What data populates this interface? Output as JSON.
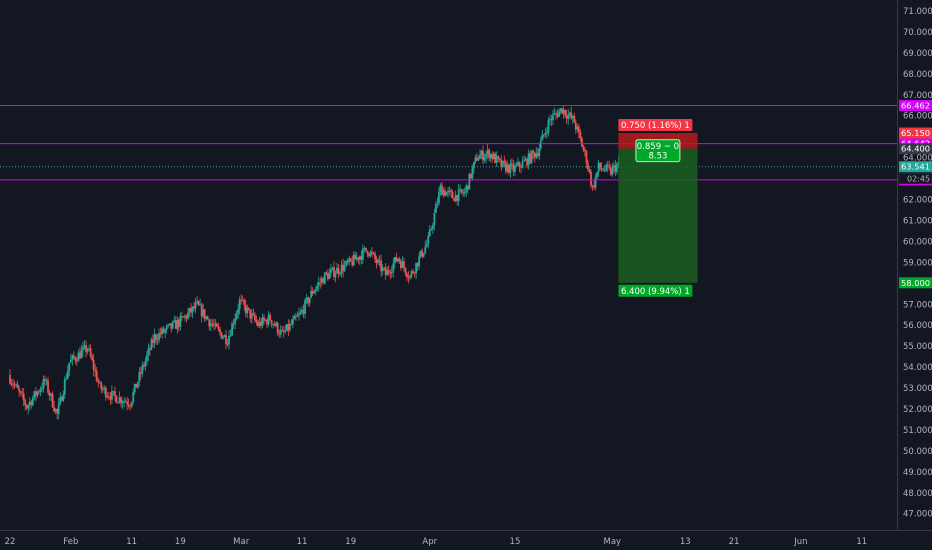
{
  "chart_data": {
    "type": "candlestick",
    "title": "",
    "xlabel": "",
    "ylabel": "",
    "ylim": [
      46.2,
      71.5
    ],
    "grid": false,
    "y_ticks": [
      47,
      48,
      49,
      50,
      51,
      52,
      53,
      54,
      55,
      56,
      57,
      58,
      59,
      60,
      61,
      62,
      63,
      64,
      65,
      66,
      67,
      68,
      69,
      70,
      71
    ],
    "x_ticks": [
      {
        "label": "22",
        "date": "2019-01-22"
      },
      {
        "label": "Feb",
        "date": "2019-02-01"
      },
      {
        "label": "11",
        "date": "2019-02-11"
      },
      {
        "label": "19",
        "date": "2019-02-19"
      },
      {
        "label": "Mar",
        "date": "2019-03-01"
      },
      {
        "label": "11",
        "date": "2019-03-11"
      },
      {
        "label": "19",
        "date": "2019-03-19"
      },
      {
        "label": "Apr",
        "date": "2019-04-01"
      },
      {
        "label": "15",
        "date": "2019-04-15"
      },
      {
        "label": "May",
        "date": "2019-05-01"
      },
      {
        "label": "13",
        "date": "2019-05-13"
      },
      {
        "label": "21",
        "date": "2019-05-21"
      },
      {
        "label": "Jun",
        "date": "2019-06-01"
      },
      {
        "label": "11",
        "date": "2019-06-11"
      }
    ],
    "x_range": [
      "2019-01-22",
      "2019-06-14"
    ],
    "price_path": [
      {
        "date": "2019-01-22",
        "price": 53.6
      },
      {
        "date": "2019-01-25",
        "price": 52.1
      },
      {
        "date": "2019-01-28",
        "price": 53.3
      },
      {
        "date": "2019-01-30",
        "price": 51.7
      },
      {
        "date": "2019-02-01",
        "price": 54.2
      },
      {
        "date": "2019-02-04",
        "price": 54.9
      },
      {
        "date": "2019-02-06",
        "price": 53.0
      },
      {
        "date": "2019-02-08",
        "price": 52.6
      },
      {
        "date": "2019-02-11",
        "price": 52.3
      },
      {
        "date": "2019-02-13",
        "price": 53.9
      },
      {
        "date": "2019-02-15",
        "price": 55.4
      },
      {
        "date": "2019-02-19",
        "price": 56.1
      },
      {
        "date": "2019-02-22",
        "price": 56.9
      },
      {
        "date": "2019-02-25",
        "price": 55.8
      },
      {
        "date": "2019-02-27",
        "price": 55.3
      },
      {
        "date": "2019-03-01",
        "price": 57.1
      },
      {
        "date": "2019-03-04",
        "price": 56.0
      },
      {
        "date": "2019-03-06",
        "price": 56.3
      },
      {
        "date": "2019-03-08",
        "price": 55.5
      },
      {
        "date": "2019-03-11",
        "price": 56.5
      },
      {
        "date": "2019-03-13",
        "price": 57.6
      },
      {
        "date": "2019-03-15",
        "price": 58.3
      },
      {
        "date": "2019-03-19",
        "price": 58.9
      },
      {
        "date": "2019-03-22",
        "price": 59.6
      },
      {
        "date": "2019-03-25",
        "price": 58.4
      },
      {
        "date": "2019-03-27",
        "price": 59.2
      },
      {
        "date": "2019-03-29",
        "price": 58.3
      },
      {
        "date": "2019-04-01",
        "price": 60.0
      },
      {
        "date": "2019-04-03",
        "price": 62.5
      },
      {
        "date": "2019-04-05",
        "price": 62.1
      },
      {
        "date": "2019-04-07",
        "price": 62.3
      },
      {
        "date": "2019-04-09",
        "price": 64.0
      },
      {
        "date": "2019-04-11",
        "price": 64.2
      },
      {
        "date": "2019-04-13",
        "price": 63.6
      },
      {
        "date": "2019-04-15",
        "price": 63.4
      },
      {
        "date": "2019-04-17",
        "price": 63.8
      },
      {
        "date": "2019-04-19",
        "price": 64.3
      },
      {
        "date": "2019-04-21",
        "price": 65.8
      },
      {
        "date": "2019-04-23",
        "price": 66.3
      },
      {
        "date": "2019-04-25",
        "price": 65.7
      },
      {
        "date": "2019-04-27",
        "price": 63.9
      },
      {
        "date": "2019-04-28",
        "price": 62.5
      },
      {
        "date": "2019-04-29",
        "price": 63.5
      },
      {
        "date": "2019-05-01",
        "price": 63.3
      },
      {
        "date": "2019-05-02",
        "price": 63.6
      }
    ],
    "horizontal_lines": [
      {
        "price": 66.462,
        "label": "66.462",
        "color": "#d500f9"
      },
      {
        "price": 64.642,
        "label": "64.642",
        "color": "#d500f9"
      },
      {
        "price": 63.541,
        "label": "63.541",
        "color": "#26a69a",
        "style": "dotted"
      },
      {
        "price": 62.911,
        "label": "62.911",
        "color": "#d500f9"
      }
    ],
    "price_labels": [
      {
        "price": 65.15,
        "label": "65.150",
        "color": "#f23645"
      },
      {
        "price": 64.4,
        "label": "64.400",
        "color": "#363a45"
      },
      {
        "price": 58.0,
        "label": "58.000",
        "color": "#00a828"
      }
    ],
    "countdown": "02:45",
    "position_tool": {
      "start_date": "2019-05-02",
      "end_date": "2019-05-15",
      "entry": 64.4,
      "stop": 65.15,
      "target": 58.0,
      "stop_label": "0.750 (1.16%) 1",
      "target_label": "6.400 (9.94%) 1",
      "center_line1": "0.859 ~ 0",
      "center_line2": "8.53",
      "stop_color": "#b71c1c",
      "target_color": "#1b5e20"
    }
  }
}
